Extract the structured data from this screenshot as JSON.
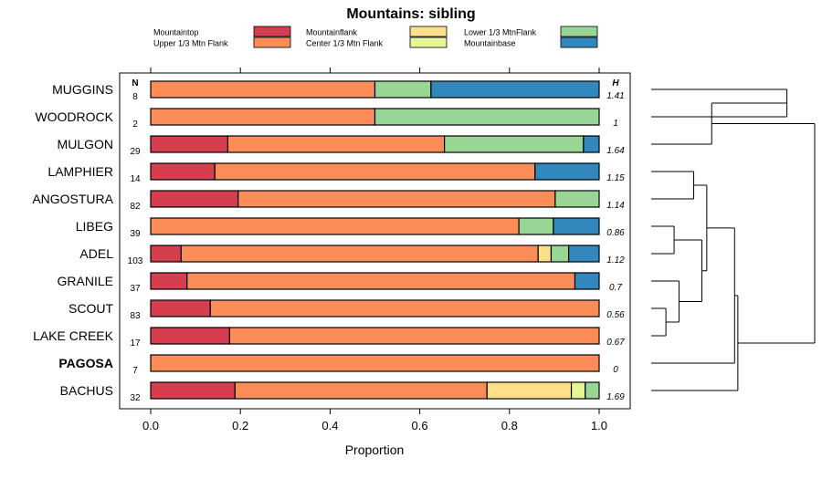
{
  "chart_data": {
    "type": "bar",
    "orientation": "horizontal",
    "stacked": true,
    "title": "Mountains: sibling",
    "xlabel": "Proportion",
    "ylabel": "",
    "xlim": [
      0,
      1
    ],
    "x_ticks": [
      "0.0",
      "0.2",
      "0.4",
      "0.6",
      "0.8",
      "1.0"
    ],
    "x_tick_values": [
      0,
      0.2,
      0.4,
      0.6,
      0.8,
      1.0
    ],
    "n_header": "N",
    "h_header": "H",
    "legend": [
      {
        "name": "Mountaintop",
        "color": "#d53e4f"
      },
      {
        "name": "Upper 1/3 Mtn Flank",
        "color": "#fc8d59"
      },
      {
        "name": "Mountainflank",
        "color": "#fee08b"
      },
      {
        "name": "Center 1/3 Mtn Flank",
        "color": "#e6f598"
      },
      {
        "name": "Lower 1/3 MtnFlank",
        "color": "#99d594"
      },
      {
        "name": "Mountainbase",
        "color": "#3288bd"
      }
    ],
    "categories": [
      "MUGGINS",
      "WOODROCK",
      "MULGON",
      "LAMPHIER",
      "ANGOSTURA",
      "LIBEG",
      "ADEL",
      "GRANILE",
      "SCOUT",
      "LAKE CREEK",
      "PAGOSA",
      "BACHUS"
    ],
    "highlighted": [
      "PAGOSA"
    ],
    "n": [
      "8",
      "2",
      "29",
      "14",
      "82",
      "39",
      "103",
      "37",
      "83",
      "17",
      "7",
      "32"
    ],
    "h": [
      "1.41",
      "1",
      "1.64",
      "1.15",
      "1.14",
      "0.86",
      "1.12",
      "0.7",
      "0.56",
      "0.67",
      "0",
      "1.69"
    ],
    "series": [
      {
        "name": "Mountaintop",
        "values": [
          0,
          0,
          0.172,
          0.143,
          0.195,
          0,
          0.068,
          0.081,
          0.133,
          0.176,
          0,
          0.188
        ]
      },
      {
        "name": "Upper 1/3 Mtn Flank",
        "values": [
          0.5,
          0.5,
          0.483,
          0.714,
          0.707,
          0.821,
          0.796,
          0.865,
          0.867,
          0.824,
          1,
          0.562
        ]
      },
      {
        "name": "Mountainflank",
        "values": [
          0,
          0,
          0,
          0,
          0,
          0,
          0.029,
          0,
          0,
          0,
          0,
          0.188
        ]
      },
      {
        "name": "Center 1/3 Mtn Flank",
        "values": [
          0,
          0,
          0,
          0,
          0,
          0,
          0,
          0,
          0,
          0,
          0,
          0.031
        ]
      },
      {
        "name": "Lower 1/3 MtnFlank",
        "values": [
          0.125,
          0.5,
          0.31,
          0,
          0.098,
          0.077,
          0.039,
          0,
          0,
          0,
          0,
          0.031
        ]
      },
      {
        "name": "Mountainbase",
        "values": [
          0.375,
          0,
          0.035,
          0.143,
          0,
          0.102,
          0.068,
          0.054,
          0,
          0,
          0,
          0
        ]
      }
    ],
    "dendrogram": {
      "leaves": [
        "MUGGINS",
        "WOODROCK",
        "MULGON",
        "LAMPHIER",
        "ANGOSTURA",
        "LIBEG",
        "ADEL",
        "GRANILE",
        "SCOUT",
        "LAKE CREEK",
        "PAGOSA",
        "BACHUS"
      ],
      "merges": [
        {
          "children": [
            "L0",
            "L1"
          ],
          "height": 0.83
        },
        {
          "children": [
            "L3",
            "L4"
          ],
          "height": 0.26
        },
        {
          "children": [
            "L5",
            "L6"
          ],
          "height": 0.14
        },
        {
          "children": [
            "L8",
            "L9"
          ],
          "height": 0.09
        },
        {
          "children": [
            "L7",
            "M3"
          ],
          "height": 0.17
        },
        {
          "children": [
            "M2",
            "M4"
          ],
          "height": 0.31
        },
        {
          "children": [
            "M1",
            "M5"
          ],
          "height": 0.34
        },
        {
          "children": [
            "L2",
            "M0"
          ],
          "height": 0.37
        },
        {
          "children": [
            "M6",
            "L10"
          ],
          "height": 0.51
        },
        {
          "children": [
            "M8",
            "L11"
          ],
          "height": 0.53
        },
        {
          "children": [
            "M7",
            "M9"
          ],
          "height": 1.0
        }
      ]
    }
  }
}
